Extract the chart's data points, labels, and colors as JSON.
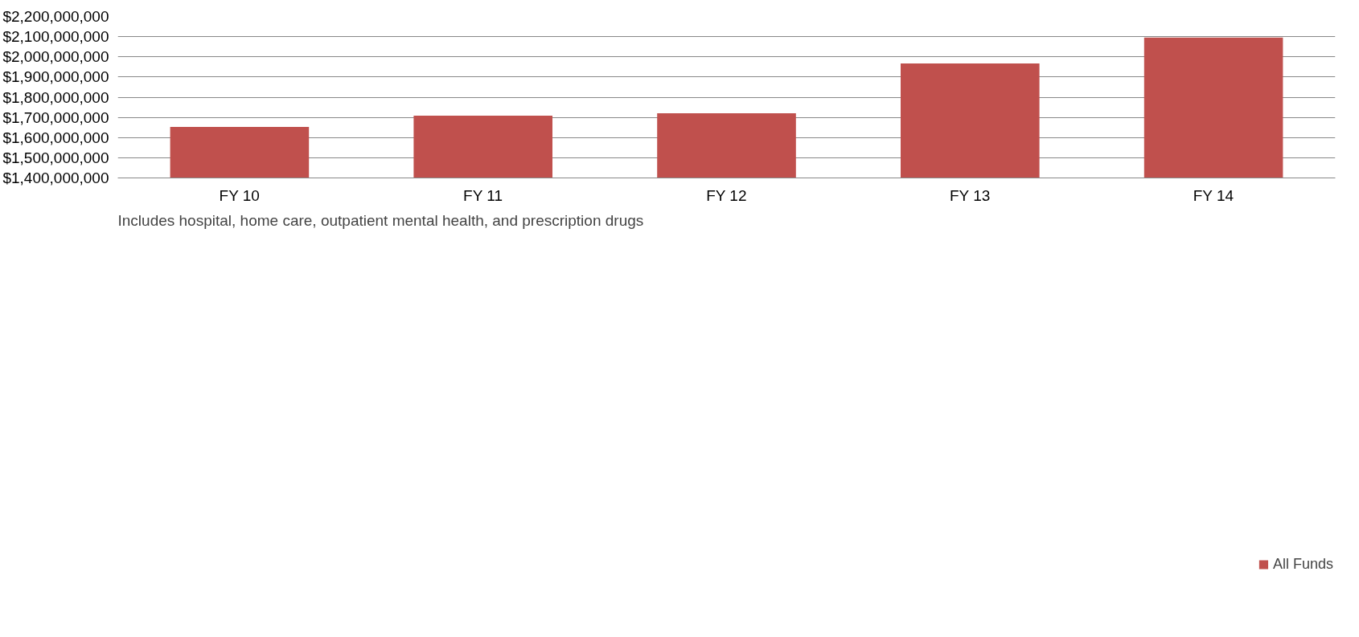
{
  "chart_data": {
    "type": "bar",
    "categories": [
      "FY 10",
      "FY 11",
      "FY 12",
      "FY 13",
      "FY 14"
    ],
    "series": [
      {
        "name": "All Funds",
        "color": "#c0504d",
        "values": [
          1653000000,
          1708000000,
          1720000000,
          1967000000,
          2096000000
        ]
      }
    ],
    "ylim": [
      1400000000,
      2200000000
    ],
    "yticks": [
      {
        "value": 1400000000,
        "label": "$1,400,000,000"
      },
      {
        "value": 1500000000,
        "label": "$1,500,000,000"
      },
      {
        "value": 1600000000,
        "label": "$1,600,000,000"
      },
      {
        "value": 1700000000,
        "label": "$1,700,000,000"
      },
      {
        "value": 1800000000,
        "label": "$1,800,000,000"
      },
      {
        "value": 1900000000,
        "label": "$1,900,000,000"
      },
      {
        "value": 2000000000,
        "label": "$2,000,000,000"
      },
      {
        "value": 2100000000,
        "label": "$2,100,000,000"
      },
      {
        "value": 2200000000,
        "label": "$2,200,000,000"
      }
    ],
    "grid": "y",
    "legend": "bottom right",
    "annotations": [
      "Includes hospital, home care, outpatient mental health, and prescription drugs"
    ]
  }
}
